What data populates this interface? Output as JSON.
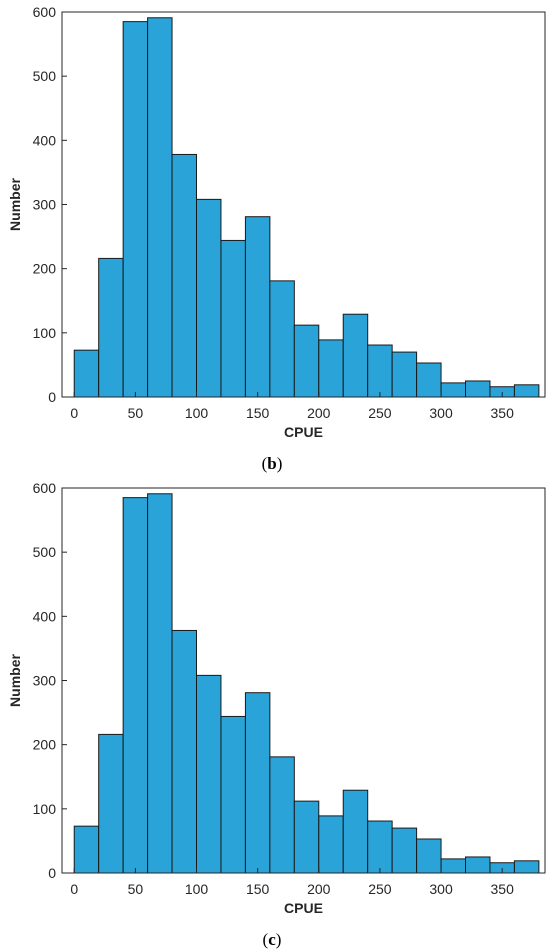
{
  "chart_data": [
    {
      "type": "bar",
      "panel_label": "b",
      "xlabel": "CPUE",
      "ylabel": "Number",
      "xlim": [
        -10,
        385
      ],
      "ylim": [
        0,
        600
      ],
      "xticks": [
        0,
        50,
        100,
        150,
        200,
        250,
        300,
        350
      ],
      "yticks": [
        0,
        100,
        200,
        300,
        400,
        500,
        600
      ],
      "bin_width": 20,
      "bin_edges": [
        0,
        20,
        40,
        60,
        80,
        100,
        120,
        140,
        160,
        180,
        200,
        220,
        240,
        260,
        280,
        300,
        320,
        340,
        360,
        380
      ],
      "values": [
        73,
        216,
        585,
        591,
        378,
        308,
        244,
        281,
        181,
        112,
        89,
        129,
        81,
        70,
        53,
        22,
        25,
        16,
        19
      ],
      "bar_color": "#2aa3d8",
      "grid": false
    },
    {
      "type": "bar",
      "panel_label": "c",
      "xlabel": "CPUE",
      "ylabel": "Number",
      "xlim": [
        -10,
        385
      ],
      "ylim": [
        0,
        600
      ],
      "xticks": [
        0,
        50,
        100,
        150,
        200,
        250,
        300,
        350
      ],
      "yticks": [
        0,
        100,
        200,
        300,
        400,
        500,
        600
      ],
      "bin_width": 20,
      "bin_edges": [
        0,
        20,
        40,
        60,
        80,
        100,
        120,
        140,
        160,
        180,
        200,
        220,
        240,
        260,
        280,
        300,
        320,
        340,
        360,
        380
      ],
      "values": [
        73,
        216,
        585,
        591,
        378,
        308,
        244,
        281,
        181,
        112,
        89,
        129,
        81,
        70,
        53,
        22,
        25,
        16,
        19
      ],
      "bar_color": "#2aa3d8",
      "grid": false
    }
  ]
}
